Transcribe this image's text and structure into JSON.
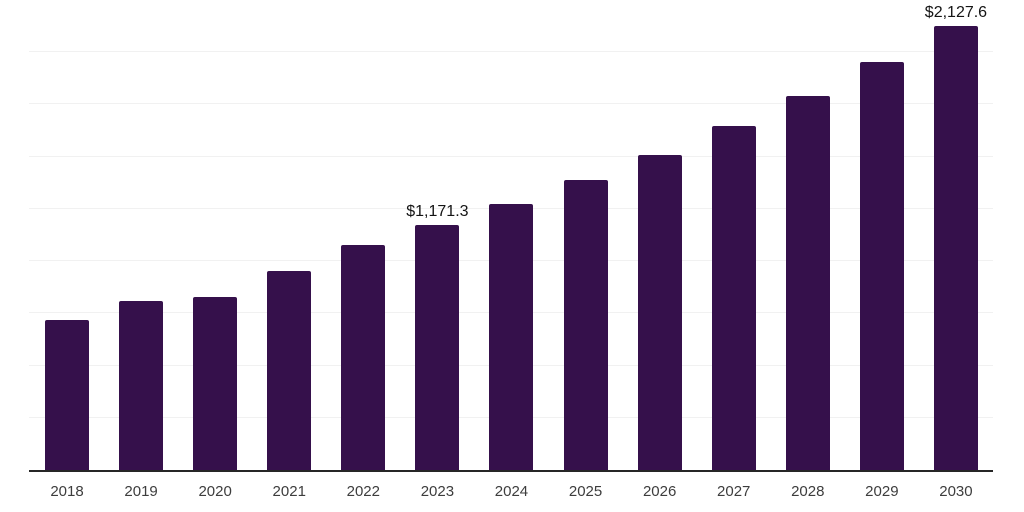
{
  "chart_data": {
    "type": "bar",
    "title": "",
    "xlabel": "",
    "ylabel": "",
    "categories": [
      "2018",
      "2019",
      "2020",
      "2021",
      "2022",
      "2023",
      "2024",
      "2025",
      "2026",
      "2027",
      "2028",
      "2029",
      "2030"
    ],
    "values": [
      719,
      809,
      828,
      953,
      1079,
      1171.3,
      1275,
      1388,
      1510,
      1645,
      1792,
      1954,
      2127.6
    ],
    "data_labels": [
      "",
      "",
      "",
      "",
      "",
      "$1,171.3",
      "",
      "",
      "",
      "",
      "",
      "",
      "$2,127.6"
    ],
    "ylim": [
      0,
      2250
    ],
    "gridline_step": 250,
    "grid": "horizontal-light",
    "legend_position": "none",
    "colors": {
      "bar": "#35104B",
      "axis_line": "#262626",
      "gridline": "#f1f1f1",
      "tick_label": "#3d3d3d",
      "data_label": "#141414",
      "background": "#ffffff"
    }
  }
}
